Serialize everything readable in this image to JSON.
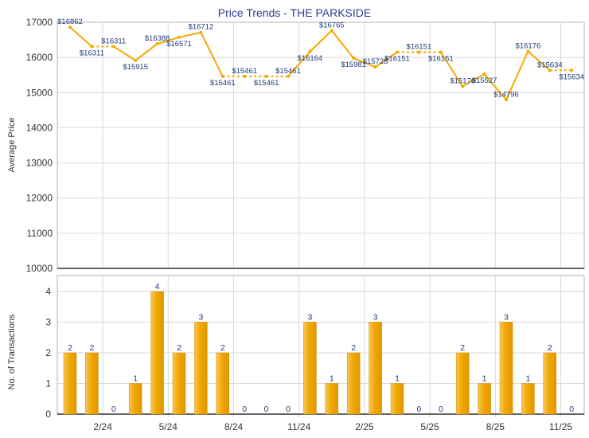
{
  "title": "Price Trends - THE PARKSIDE",
  "colors": {
    "line": "#f5a800",
    "bar": "#f0a800",
    "label": "#1f3a7a",
    "title": "#2a3f8f"
  },
  "chart_data": [
    {
      "type": "line",
      "title": "Price Trends - THE PARKSIDE",
      "ylabel": "Average Price",
      "ylim": [
        10000,
        17000
      ],
      "yticks": [
        "10000",
        "11000",
        "12000",
        "13000",
        "14000",
        "15000",
        "16000",
        "17000"
      ],
      "grid": true,
      "points": [
        {
          "x": 0,
          "y": 16862,
          "label": "$16862",
          "dash_after": false
        },
        {
          "x": 1,
          "y": 16311,
          "label": "$16311",
          "dash_after": true
        },
        {
          "x": 2,
          "y": 16311,
          "label": "$16311",
          "dash_after": false
        },
        {
          "x": 3,
          "y": 15915,
          "label": "$15915",
          "dash_after": false
        },
        {
          "x": 4,
          "y": 16388,
          "label": "$16388",
          "dash_after": false
        },
        {
          "x": 5,
          "y": 16571,
          "label": "$16571",
          "dash_after": false
        },
        {
          "x": 6,
          "y": 16712,
          "label": "$16712",
          "dash_after": false
        },
        {
          "x": 7,
          "y": 15461,
          "label": "$15461",
          "dash_after": true
        },
        {
          "x": 8,
          "y": 15461,
          "label": "$15461",
          "dash_after": true
        },
        {
          "x": 9,
          "y": 15461,
          "label": "$15461",
          "dash_after": true
        },
        {
          "x": 10,
          "y": 15461,
          "label": "$15461",
          "dash_after": false
        },
        {
          "x": 11,
          "y": 16164,
          "label": "$16164",
          "dash_after": false
        },
        {
          "x": 12,
          "y": 16765,
          "label": "$16765",
          "dash_after": false
        },
        {
          "x": 13,
          "y": 15981,
          "label": "$15981",
          "dash_after": false
        },
        {
          "x": 14,
          "y": 15728,
          "label": "$15728",
          "dash_after": false
        },
        {
          "x": 15,
          "y": 16151,
          "label": "$16151",
          "dash_after": true
        },
        {
          "x": 16,
          "y": 16151,
          "label": "$16151",
          "dash_after": true
        },
        {
          "x": 17,
          "y": 16151,
          "label": "$16151",
          "dash_after": false
        },
        {
          "x": 18,
          "y": 15176,
          "label": "$15176",
          "dash_after": false
        },
        {
          "x": 19,
          "y": 15527,
          "label": "$15527",
          "dash_after": false
        },
        {
          "x": 20,
          "y": 14796,
          "label": "$14796",
          "dash_after": false
        },
        {
          "x": 21,
          "y": 16176,
          "label": "$16176",
          "dash_after": false
        },
        {
          "x": 22,
          "y": 15634,
          "label": "$15634",
          "dash_after": true
        },
        {
          "x": 23,
          "y": 15634,
          "label": "$15634",
          "dash_after": false
        }
      ]
    },
    {
      "type": "bar",
      "ylabel": "No. of Transactions",
      "ylim": [
        0,
        4
      ],
      "yticks": [
        "0",
        "1",
        "2",
        "3",
        "4"
      ],
      "grid": true,
      "categories": [
        "",
        "2/24",
        "",
        "",
        "5/24",
        "",
        "",
        "8/24",
        "",
        "",
        "11/24",
        "",
        "",
        "2/25",
        "",
        "",
        "5/25",
        "",
        "",
        "8/25",
        "",
        "",
        "11/25",
        ""
      ],
      "xtick_labels": [
        {
          "index": 2,
          "label": "2/24"
        },
        {
          "index": 5,
          "label": "5/24"
        },
        {
          "index": 8,
          "label": "8/24"
        },
        {
          "index": 11,
          "label": "11/24"
        },
        {
          "index": 14,
          "label": "2/25"
        },
        {
          "index": 17,
          "label": "5/25"
        },
        {
          "index": 20,
          "label": "8/25"
        },
        {
          "index": 23,
          "label": "11/25"
        }
      ],
      "values": [
        2,
        2,
        0,
        1,
        4,
        2,
        3,
        2,
        0,
        0,
        0,
        3,
        1,
        2,
        3,
        1,
        0,
        0,
        2,
        1,
        3,
        1,
        2,
        0
      ]
    }
  ]
}
